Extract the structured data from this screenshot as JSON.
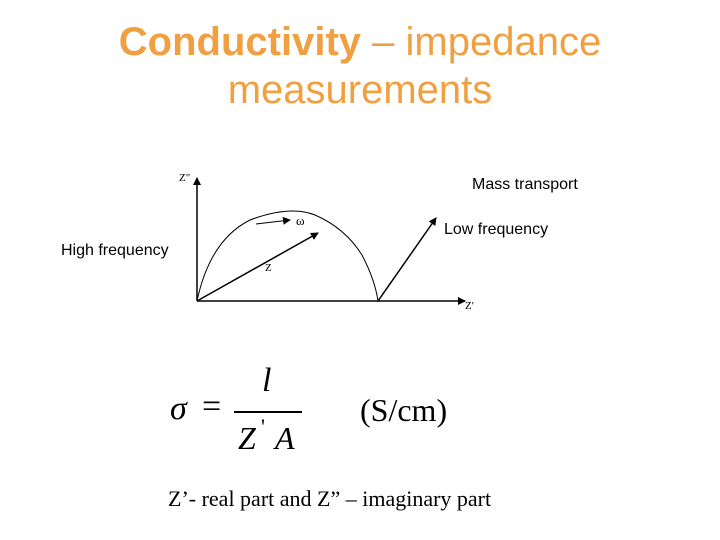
{
  "title": {
    "bold": "Conductivity",
    "rest_line1": " – impedance",
    "line2": "measurements",
    "color": "#f0a040"
  },
  "diagram": {
    "y_axis_label": "Z\"",
    "x_axis_label": "Z'",
    "arc_point_label": "Z",
    "omega_label": "ω",
    "high_frequency_label": "High frequency",
    "low_frequency_label": "Low frequency",
    "mass_transport_label": "Mass transport"
  },
  "formula": {
    "sigma": "σ",
    "equals": "=",
    "numerator": "l",
    "denominator_z": "Z",
    "prime": "'",
    "denominator_a": "A",
    "units": "(S/cm)"
  },
  "caption": "Z’- real part and  Z” – imaginary part"
}
